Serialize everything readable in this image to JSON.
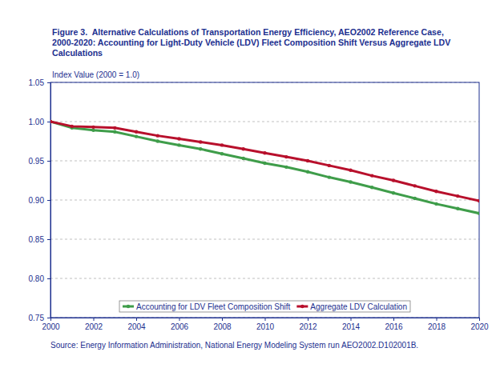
{
  "chart_data": {
    "type": "line",
    "title": "Figure 3.  Alternative Calculations of Transportation Energy Efficiency, AEO2002 Reference Case, 2000-2020: Accounting for Light-Duty Vehicle (LDV) Fleet Composition Shift Versus Aggregate LDV Calculations",
    "y_label": "Index Value (2000 = 1.0)",
    "source": "Source: Energy Information Administration, National Energy Modeling System run AEO2002.D102001B.",
    "x": [
      2000,
      2001,
      2002,
      2003,
      2004,
      2005,
      2006,
      2007,
      2008,
      2009,
      2010,
      2011,
      2012,
      2013,
      2014,
      2015,
      2016,
      2017,
      2018,
      2019,
      2020
    ],
    "series": [
      {
        "name": "Accounting for LDV Fleet Composition Shift",
        "color": "#3f9d4a",
        "marker": "circle",
        "values": [
          1.0,
          0.992,
          0.989,
          0.987,
          0.981,
          0.975,
          0.97,
          0.965,
          0.959,
          0.953,
          0.947,
          0.942,
          0.936,
          0.929,
          0.923,
          0.916,
          0.909,
          0.902,
          0.895,
          0.889,
          0.883
        ]
      },
      {
        "name": "Aggregate LDV Calculation",
        "color": "#b8102c",
        "marker": "circle",
        "values": [
          1.0,
          0.994,
          0.993,
          0.992,
          0.987,
          0.982,
          0.978,
          0.974,
          0.97,
          0.965,
          0.96,
          0.955,
          0.95,
          0.944,
          0.938,
          0.931,
          0.925,
          0.918,
          0.911,
          0.905,
          0.899
        ]
      }
    ],
    "xlim": [
      2000,
      2020
    ],
    "xticks": [
      2000,
      2002,
      2004,
      2006,
      2008,
      2010,
      2012,
      2014,
      2016,
      2018,
      2020
    ],
    "ylim": [
      0.75,
      1.05
    ],
    "yticks": [
      0.75,
      {
        "value": 0.8,
        "label": "0.80"
      },
      0.85,
      {
        "value": 0.9,
        "label": "0.90"
      },
      0.95,
      {
        "value": 1.0,
        "label": "1.00"
      },
      1.05
    ],
    "grid": true,
    "legend": "bottom"
  }
}
